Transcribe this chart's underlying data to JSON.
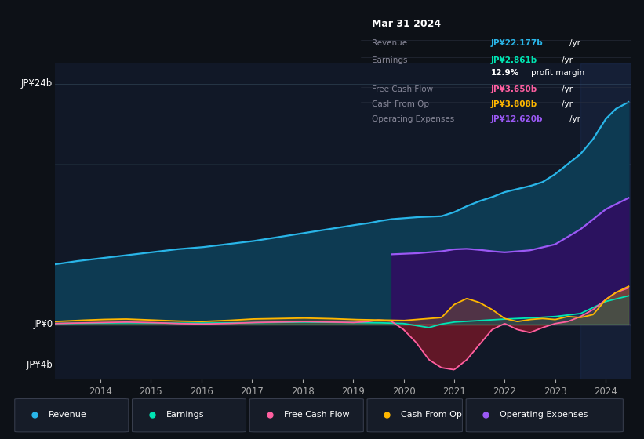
{
  "bg_color": "#0d1117",
  "plot_bg_color": "#111827",
  "info_box": {
    "date": "Mar 31 2024",
    "revenue_label": "Revenue",
    "revenue_val": "JP¥22.177b",
    "earnings_label": "Earnings",
    "earnings_val": "JP¥2.861b",
    "profit_margin": "12.9% profit margin",
    "fcf_label": "Free Cash Flow",
    "fcf_val": "JP¥3.650b",
    "cop_label": "Cash From Op",
    "cop_val": "JP¥3.808b",
    "opex_label": "Operating Expenses",
    "opex_val": "JP¥12.620b"
  },
  "colors": {
    "revenue": "#29b5e8",
    "earnings": "#00e5b4",
    "free_cash_flow": "#ff5fa0",
    "cash_from_op": "#ffb700",
    "operating_expenses": "#9b59f5"
  },
  "legend": [
    {
      "label": "Revenue",
      "color": "#29b5e8"
    },
    {
      "label": "Earnings",
      "color": "#00e5b4"
    },
    {
      "label": "Free Cash Flow",
      "color": "#ff5fa0"
    },
    {
      "label": "Cash From Op",
      "color": "#ffb700"
    },
    {
      "label": "Operating Expenses",
      "color": "#9b59f5"
    }
  ],
  "xlim": [
    2013.1,
    2024.5
  ],
  "ylim": [
    -5.5,
    26.0
  ],
  "y24_val": 24,
  "y0_val": 0,
  "ym4_val": -4
}
